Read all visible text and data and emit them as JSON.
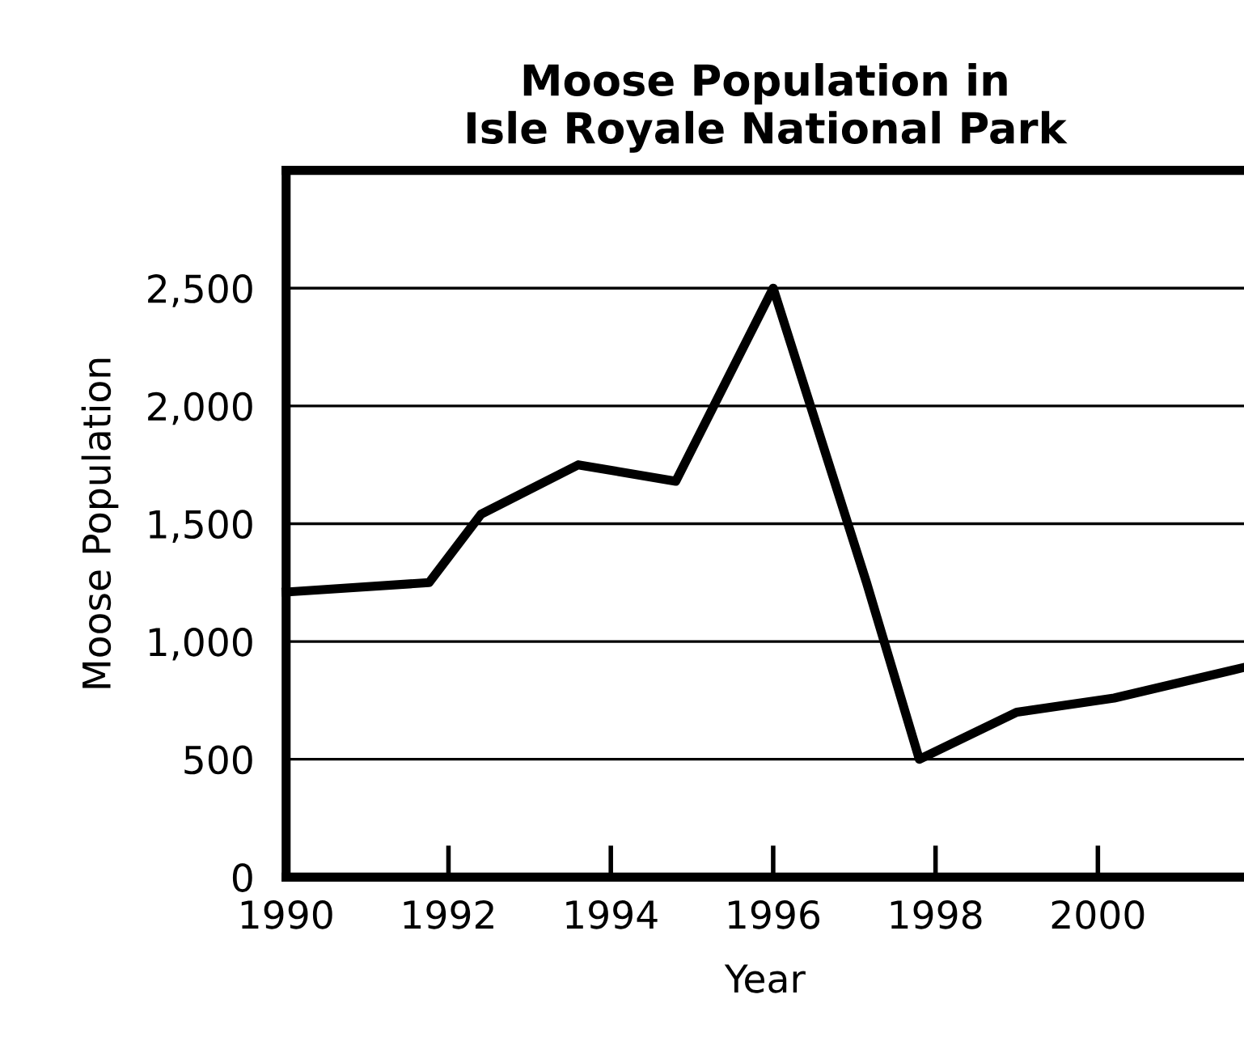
{
  "chart_data": {
    "type": "line",
    "title": "Moose Population in\nIsle Royale National Park",
    "xlabel": "Year",
    "ylabel": "Moose Population",
    "x": [
      1990,
      1991.76,
      1992.4,
      1993.6,
      1994.8,
      1996,
      1997.15,
      1997.8,
      1999,
      2000.2,
      2001.8
    ],
    "series": [
      {
        "color": "#000000",
        "values": [
          1210,
          1250,
          1540,
          1750,
          1680,
          2500,
          1250,
          500,
          700,
          760,
          890
        ]
      }
    ],
    "xlim": [
      1990,
      2001.8
    ],
    "xticks": [
      1990,
      1992,
      1994,
      1996,
      1998,
      2000
    ],
    "ylim": [
      0,
      3000
    ],
    "yticks": [
      0,
      {
        "value": 500,
        "label": "500"
      },
      {
        "value": 1000,
        "label": "1,000"
      },
      {
        "value": 1500,
        "label": "1,500"
      },
      {
        "value": 2000,
        "label": "2,000"
      },
      {
        "value": 2500,
        "label": "2,500"
      }
    ],
    "grid": "y",
    "marker": "none",
    "line_style": "solid"
  }
}
